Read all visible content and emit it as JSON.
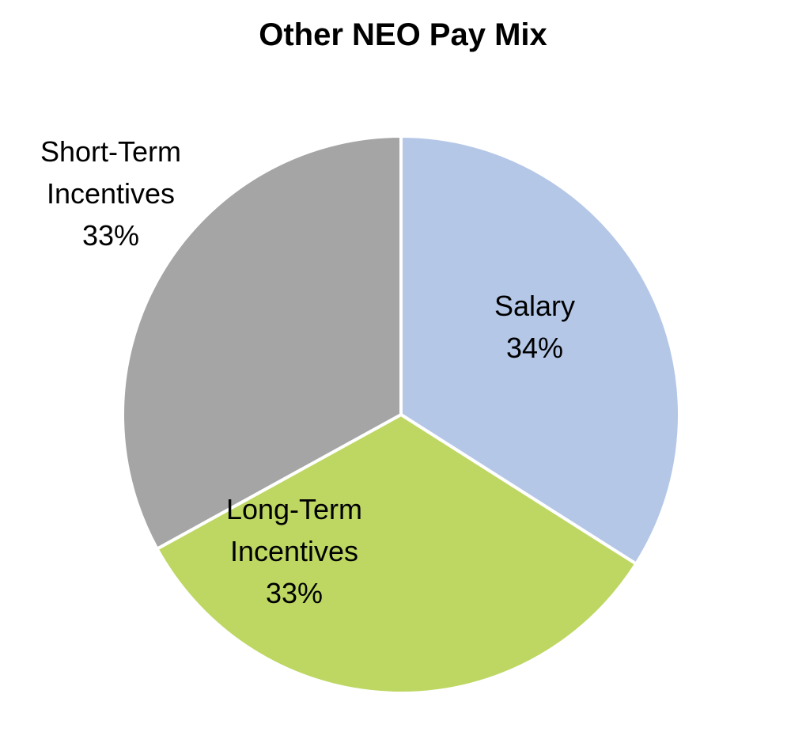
{
  "chart_data": {
    "type": "pie",
    "title": "Other NEO Pay Mix",
    "categories": [
      "Salary",
      "Long-Term Incentives",
      "Short-Term Incentives"
    ],
    "values": [
      34,
      33,
      33
    ],
    "value_labels": [
      "34%",
      "33%",
      "33%"
    ],
    "colors": [
      "#b4c7e7",
      "#bdd762",
      "#a5a5a5"
    ]
  }
}
